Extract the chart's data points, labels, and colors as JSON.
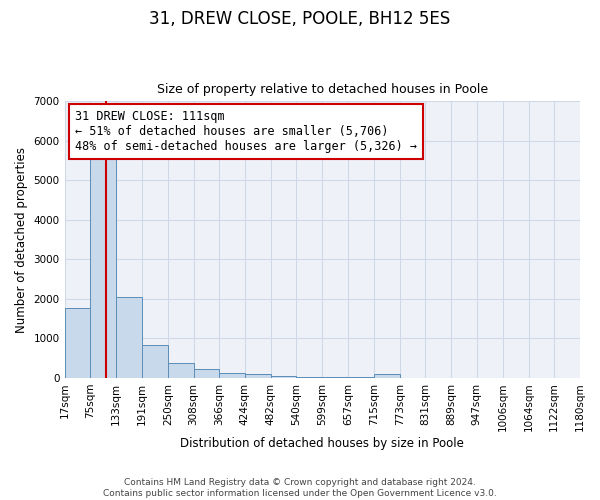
{
  "title": "31, DREW CLOSE, POOLE, BH12 5ES",
  "subtitle": "Size of property relative to detached houses in Poole",
  "xlabel": "Distribution of detached houses by size in Poole",
  "ylabel": "Number of detached properties",
  "bar_edges": [
    17,
    75,
    133,
    191,
    250,
    308,
    366,
    424,
    482,
    540,
    599,
    657,
    715,
    773,
    831,
    889,
    947,
    1006,
    1064,
    1122,
    1180
  ],
  "bar_heights": [
    1780,
    5750,
    2040,
    820,
    370,
    215,
    110,
    100,
    55,
    30,
    18,
    10,
    90,
    5,
    4,
    3,
    2,
    2,
    2,
    2
  ],
  "bar_color": "#c9d9ec",
  "bar_edge_color": "#5b8db8",
  "property_value": 111,
  "vline_color": "#cc0000",
  "annotation_line1": "31 DREW CLOSE: 111sqm",
  "annotation_line2": "← 51% of detached houses are smaller (5,706)",
  "annotation_line3": "48% of semi-detached houses are larger (5,326) →",
  "annotation_box_edge_color": "#cc0000",
  "annotation_box_face_color": "#ffffff",
  "annotation_fontsize": 8.5,
  "ylim": [
    0,
    7000
  ],
  "yticks": [
    0,
    1000,
    2000,
    3000,
    4000,
    5000,
    6000,
    7000
  ],
  "tick_labels": [
    "17sqm",
    "75sqm",
    "133sqm",
    "191sqm",
    "250sqm",
    "308sqm",
    "366sqm",
    "424sqm",
    "482sqm",
    "540sqm",
    "599sqm",
    "657sqm",
    "715sqm",
    "773sqm",
    "831sqm",
    "889sqm",
    "947sqm",
    "1006sqm",
    "1064sqm",
    "1122sqm",
    "1180sqm"
  ],
  "footer_text": "Contains HM Land Registry data © Crown copyright and database right 2024.\nContains public sector information licensed under the Open Government Licence v3.0.",
  "grid_color": "#d0d8e8",
  "background_color": "#eef2f8",
  "title_fontsize": 12,
  "subtitle_fontsize": 9,
  "axis_label_fontsize": 8.5,
  "tick_fontsize": 7.5,
  "footer_fontsize": 6.5
}
